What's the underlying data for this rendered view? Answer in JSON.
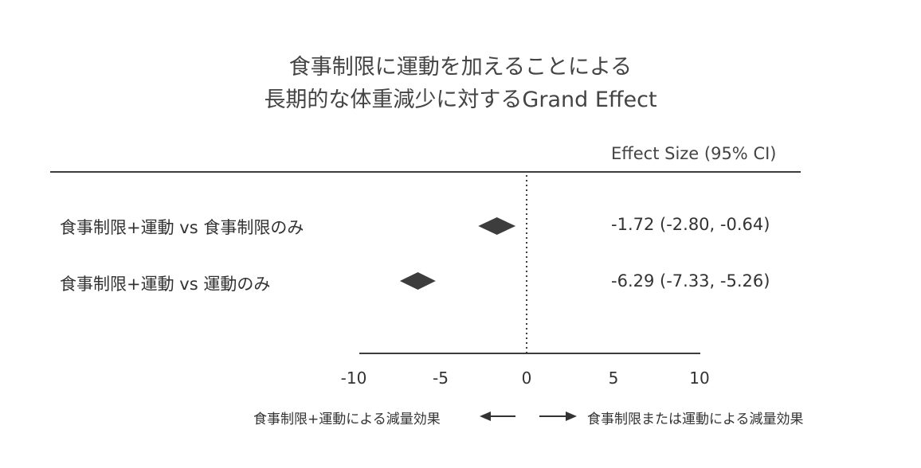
{
  "title_line1": "食事制限に運動を加えることによる",
  "title_line2": "長期的な体重減少に対するGrand Effect",
  "column_header": "Effect Size (95% CI)",
  "colors": {
    "text": "#333333",
    "diamond": "#3d3d3d",
    "axis": "#3d3d3d"
  },
  "direction_labels": {
    "left": "食事制限+運動による減量効果",
    "right": "食事制限または運動による減量効果"
  },
  "chart_data": {
    "type": "forest",
    "title": "食事制限に運動を加えることによる 長期的な体重減少に対するGrand Effect",
    "xlim": [
      -10,
      10
    ],
    "x_ticks": [
      -10,
      -5,
      0,
      5,
      10
    ],
    "x_tick_labels": [
      "-10",
      "-5",
      "0",
      "5",
      "10"
    ],
    "reference_line": 0,
    "rows": [
      {
        "label": "食事制限+運動 vs 食事制限のみ",
        "estimate": -1.72,
        "ci_low": -2.8,
        "ci_high": -0.64,
        "ci_text": "-1.72 (-2.80, -0.64)"
      },
      {
        "label": "食事制限+運動 vs 運動のみ",
        "estimate": -6.29,
        "ci_low": -7.33,
        "ci_high": -5.26,
        "ci_text": "-6.29 (-7.33, -5.26)"
      }
    ]
  }
}
